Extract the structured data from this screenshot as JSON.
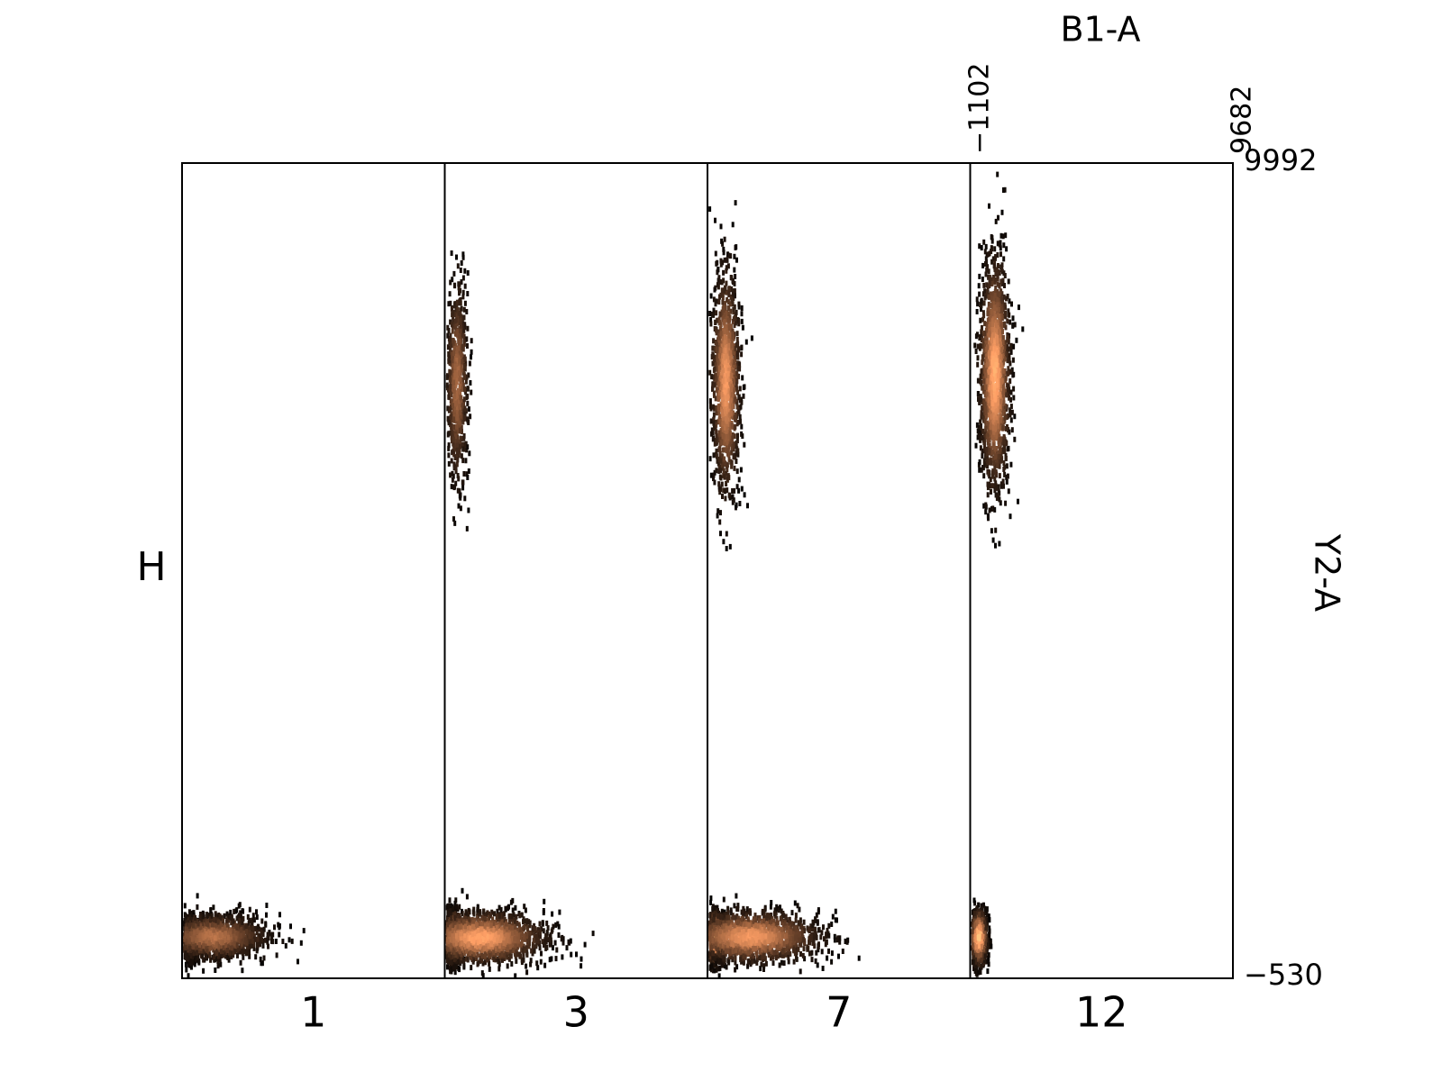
{
  "chart_data": {
    "type": "scatter",
    "description_of_panels": "faceted density scatter, one panel per H level",
    "row_label": "H",
    "panels": [
      {
        "label": "1",
        "clusters": [
          {
            "x": -820,
            "y": 20,
            "sx": 140,
            "sy": 120,
            "n": 900,
            "peak": 0.7
          },
          {
            "x": 100,
            "y": 40,
            "sx": 1100,
            "sy": 140,
            "n": 1300,
            "peak": 0.55
          }
        ]
      },
      {
        "label": "3",
        "clusters": [
          {
            "x": -830,
            "y": 30,
            "sx": 160,
            "sy": 160,
            "n": 1000,
            "peak": 1.0
          },
          {
            "x": 300,
            "y": 30,
            "sx": 1300,
            "sy": 160,
            "n": 1600,
            "peak": 0.8
          },
          {
            "x": -650,
            "y": 7200,
            "sx": 220,
            "sy": 650,
            "n": 650,
            "peak": 0.5
          }
        ]
      },
      {
        "label": "7",
        "clusters": [
          {
            "x": -850,
            "y": 30,
            "sx": 160,
            "sy": 160,
            "n": 1000,
            "peak": 1.0
          },
          {
            "x": 600,
            "y": 40,
            "sx": 1400,
            "sy": 160,
            "n": 1500,
            "peak": 0.75
          },
          {
            "x": -400,
            "y": 7200,
            "sx": 280,
            "sy": 700,
            "n": 1100,
            "peak": 0.75
          }
        ]
      },
      {
        "label": "12",
        "clusters": [
          {
            "x": -800,
            "y": 30,
            "sx": 170,
            "sy": 170,
            "n": 1100,
            "peak": 1.0
          },
          {
            "x": -150,
            "y": 7300,
            "sx": 300,
            "sy": 720,
            "n": 1500,
            "peak": 0.85
          }
        ]
      }
    ],
    "x_axis": {
      "label": "B1-A",
      "range": [
        -1102,
        9682
      ],
      "tick_labels": [
        "−1102",
        "9682"
      ]
    },
    "y_axis": {
      "label": "Y2-A",
      "range": [
        -530,
        9992
      ],
      "tick_labels": [
        "9992",
        "−530"
      ]
    },
    "colormap": "copper",
    "grid": false
  }
}
